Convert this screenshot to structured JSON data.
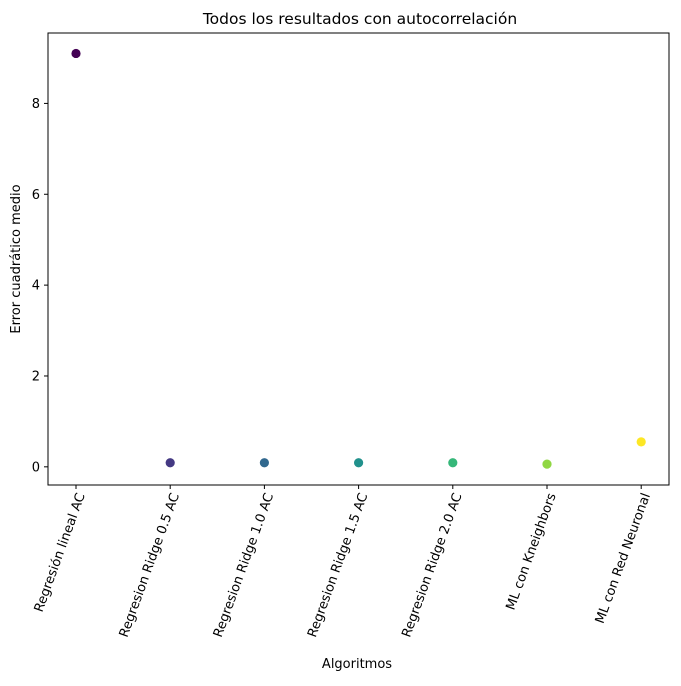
{
  "chart_data": {
    "type": "scatter",
    "title": "Todos los resultados con autocorrelación",
    "xlabel": "Algoritmos",
    "ylabel": "Error cuadrático medio",
    "categories": [
      "Regresión lineal AC",
      "Regresion Ridge 0.5 AC",
      "Regresion Ridge 1.0 AC",
      "Regresion Ridge 1.5 AC",
      "Regresion Ridge 2.0 AC",
      "ML con Kneighbors",
      "ML con Red Neuronal"
    ],
    "values": [
      9.1,
      0.09,
      0.09,
      0.09,
      0.09,
      0.06,
      0.55
    ],
    "colors": [
      "#440154",
      "#443983",
      "#31688e",
      "#21918c",
      "#35b779",
      "#90d743",
      "#fde725"
    ],
    "ylim": [
      -0.4,
      9.55
    ],
    "yticks": [
      0,
      2,
      4,
      6,
      8
    ],
    "grid": false,
    "legend": "none"
  }
}
